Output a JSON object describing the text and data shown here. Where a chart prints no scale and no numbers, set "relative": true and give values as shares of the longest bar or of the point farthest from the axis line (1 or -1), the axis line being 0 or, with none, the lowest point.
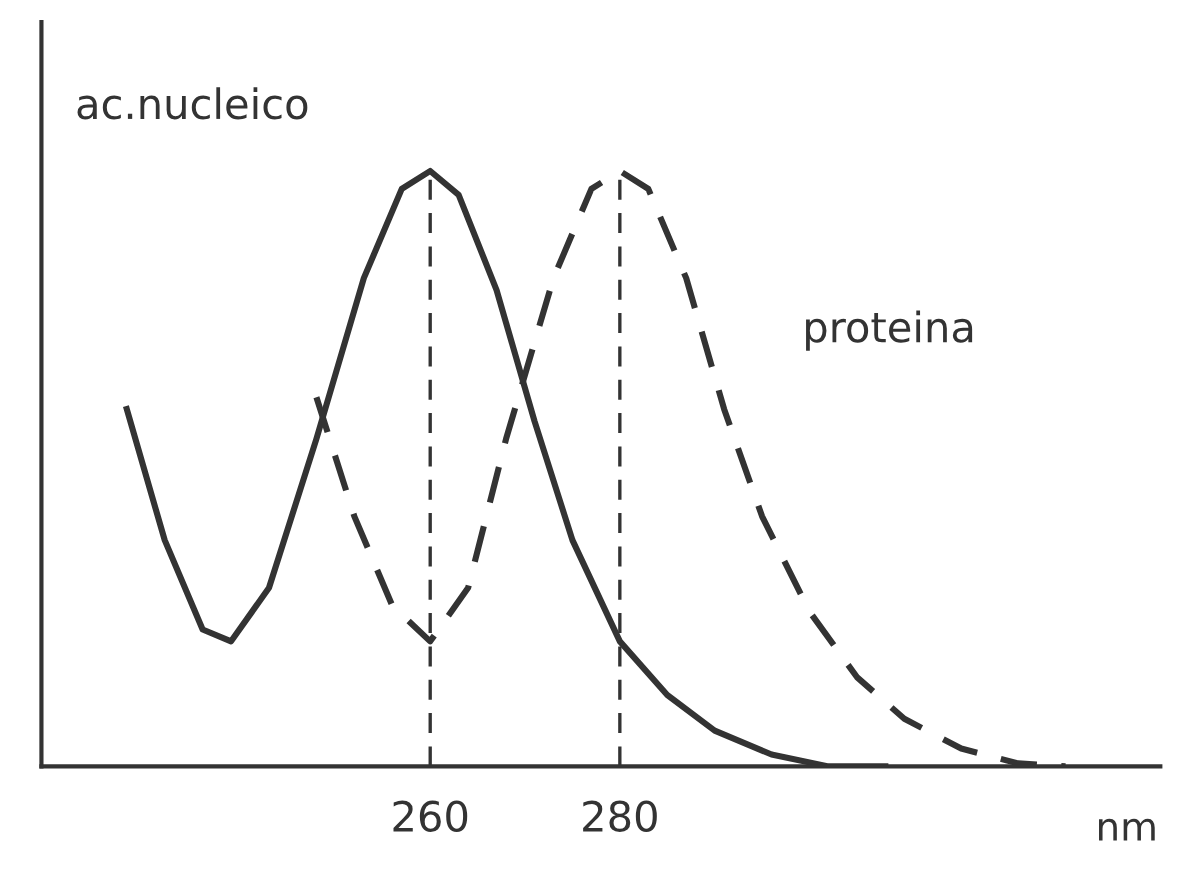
{
  "chart_data": {
    "type": "line",
    "relative": true,
    "xlabel": "nm",
    "xlim": [
      219,
      337
    ],
    "xticks": [
      260,
      280
    ],
    "series": [
      {
        "name": "ac.nucleico",
        "color": "#333333",
        "line_style": "solid",
        "x": [
          228,
          232,
          236,
          239,
          243,
          248,
          253,
          257,
          260,
          263,
          267,
          271,
          275,
          280,
          285,
          290,
          296,
          302,
          308
        ],
        "values": [
          0.6,
          0.38,
          0.23,
          0.21,
          0.3,
          0.55,
          0.82,
          0.97,
          1.0,
          0.96,
          0.8,
          0.58,
          0.38,
          0.21,
          0.12,
          0.06,
          0.02,
          0.0,
          0.0
        ]
      },
      {
        "name": "proteina",
        "color": "#333333",
        "line_style": "dashed",
        "x": [
          248,
          252,
          256,
          260,
          264,
          268,
          273,
          277,
          280,
          283,
          287,
          291,
          295,
          300,
          305,
          310,
          316,
          322,
          327
        ],
        "values": [
          0.62,
          0.42,
          0.27,
          0.21,
          0.3,
          0.55,
          0.82,
          0.97,
          1.0,
          0.97,
          0.82,
          0.6,
          0.42,
          0.26,
          0.15,
          0.08,
          0.03,
          0.005,
          0.0
        ]
      }
    ],
    "ref_lines": [
      {
        "axis": "x",
        "value": 260,
        "line_style": "dashed",
        "color": "#333333"
      },
      {
        "axis": "x",
        "value": 280,
        "line_style": "dashed",
        "color": "#333333"
      }
    ],
    "grid": false,
    "legend": false
  }
}
